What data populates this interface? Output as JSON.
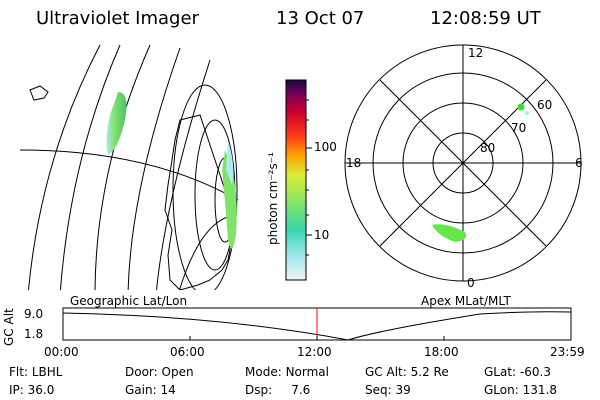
{
  "header": {
    "title": "Ultraviolet Imager",
    "date": "13 Oct 07",
    "time": "12:08:59 UT"
  },
  "colorbar": {
    "unit_label": "photon cm⁻²s⁻¹",
    "ticks": [
      "100",
      "10"
    ]
  },
  "polar": {
    "mlt_labels": {
      "top": "12",
      "left": "18",
      "right": "6",
      "bottom": "0"
    },
    "lat_labels": [
      "60",
      "70",
      "80"
    ]
  },
  "panel_labels": {
    "left": "Geographic Lat/Lon",
    "right": "Apex  MLat/MLT"
  },
  "altitude_plot": {
    "ylabel": "GC Alt",
    "ytick_top": "9.0",
    "ytick_bottom": "1.8",
    "xticks": [
      "00:00",
      "06:00",
      "12:00",
      "18:00",
      "23:59"
    ]
  },
  "info": {
    "row1": [
      {
        "key": "Flt:",
        "val": "LBHL"
      },
      {
        "key": "Door:",
        "val": "Open"
      },
      {
        "key": "Mode:",
        "val": "Normal"
      },
      {
        "key": "GC Alt:",
        "val": "5.2 Re"
      },
      {
        "key": "GLat:",
        "val": "-60.3"
      }
    ],
    "row2": [
      {
        "key": "IP:",
        "val": "36.0"
      },
      {
        "key": "Gain:",
        "val": "14"
      },
      {
        "key": "Dsp:",
        "val": "7.6"
      },
      {
        "key": "Seq:",
        "val": "39"
      },
      {
        "key": "GLon:",
        "val": "131.8"
      }
    ]
  },
  "colors": {
    "marker": "#ff0000",
    "aurora": "#66e64d",
    "dot": "#33dd33"
  }
}
